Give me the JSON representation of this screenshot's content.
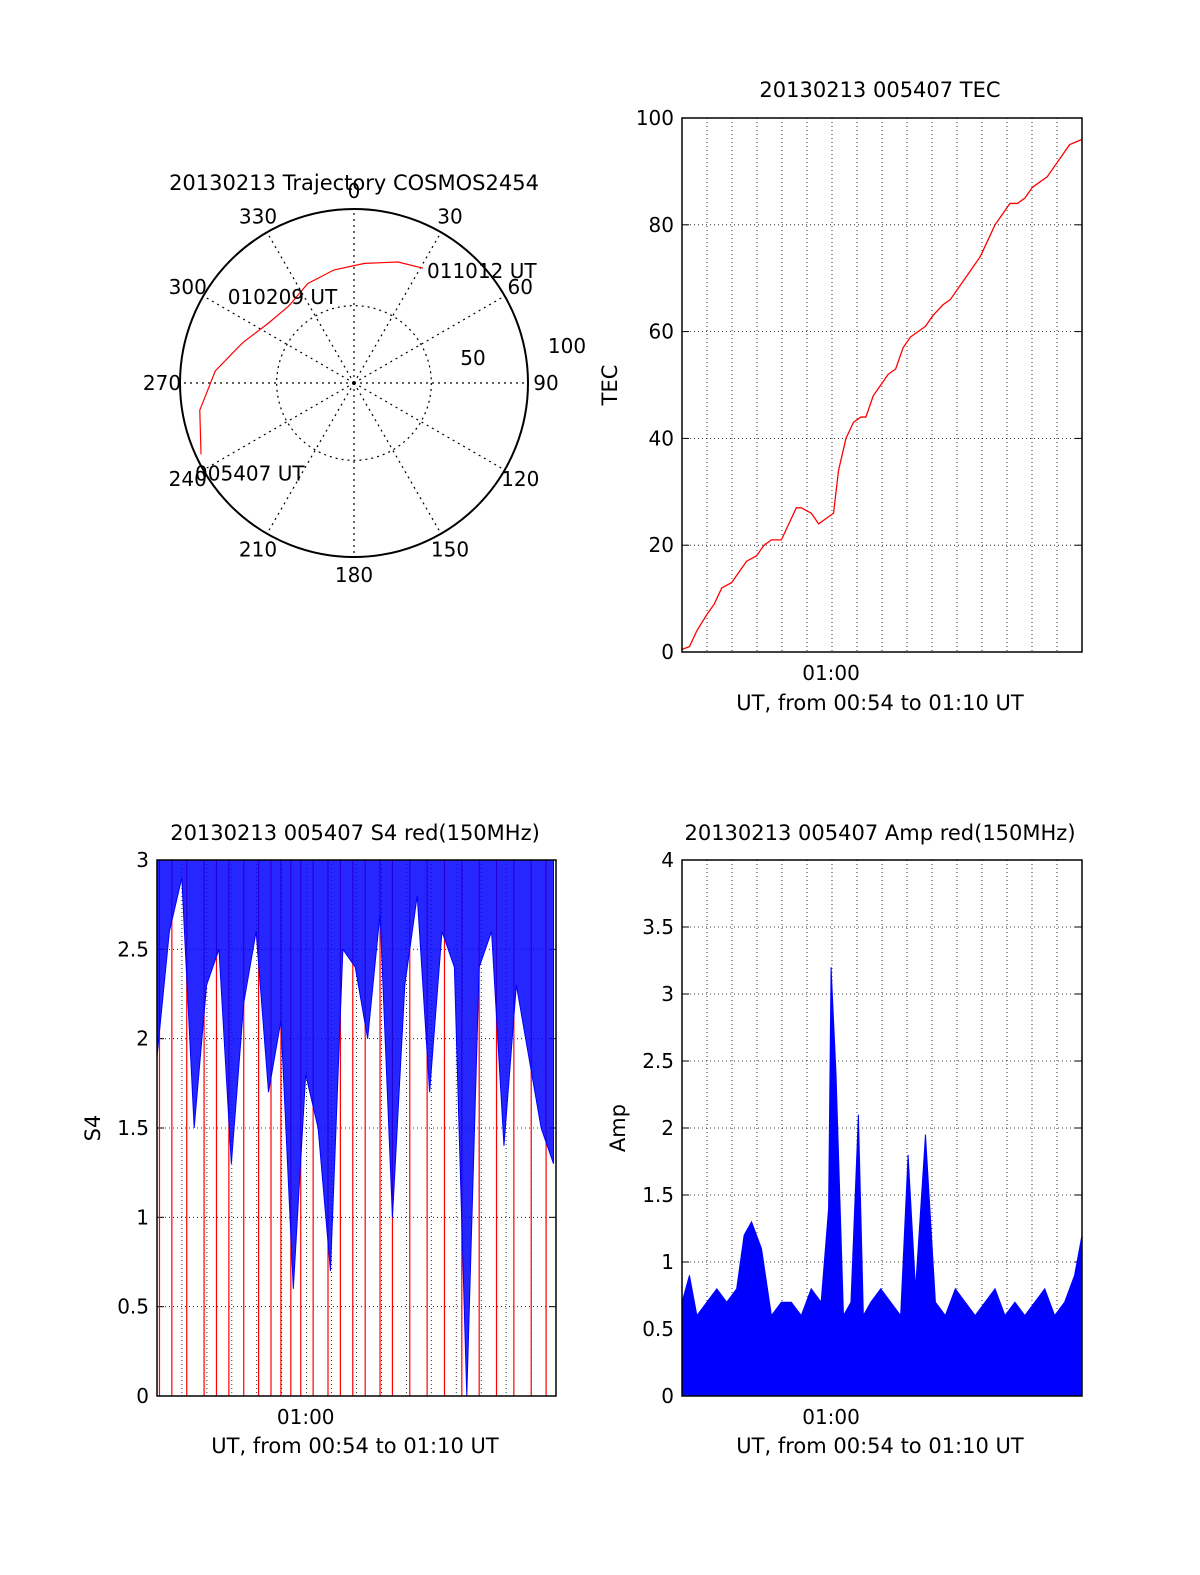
{
  "colors": {
    "red": "#ff0000",
    "blue": "#0000ff",
    "axis": "#000000"
  },
  "chart_data": [
    {
      "id": "polar",
      "type": "polar-trajectory",
      "title": "20130213 Trajectory COSMOS2454",
      "azimuth_labels": [
        "0",
        "30",
        "60",
        "90",
        "120",
        "150",
        "180",
        "210",
        "240",
        "270",
        "300",
        "330"
      ],
      "radial_labels": [
        "50",
        "100"
      ],
      "elevation_rings": [
        50
      ],
      "trajectory": [
        {
          "az": 245,
          "r": 0.97
        },
        {
          "az": 260,
          "r": 0.9
        },
        {
          "az": 275,
          "r": 0.8
        },
        {
          "az": 290,
          "r": 0.68
        },
        {
          "az": 305,
          "r": 0.6
        },
        {
          "az": 320,
          "r": 0.58
        },
        {
          "az": 335,
          "r": 0.63
        },
        {
          "az": 350,
          "r": 0.66
        },
        {
          "az": 5,
          "r": 0.69
        },
        {
          "az": 20,
          "r": 0.74
        },
        {
          "az": 31,
          "r": 0.77
        }
      ],
      "annotations": [
        {
          "text": "011012 UT",
          "az": 31,
          "r": 0.77
        },
        {
          "text": "010209 UT",
          "az": 318,
          "r": 0.58
        },
        {
          "text": "005407 UT",
          "az": 245,
          "r": 0.97
        }
      ]
    },
    {
      "id": "tec",
      "type": "line",
      "title": "20130213 005407 TEC",
      "xlabel": "UT, from 00:54 to 01:10 UT",
      "ylabel": "TEC",
      "xlim": [
        0,
        16.1
      ],
      "ylim": [
        0,
        100
      ],
      "xticks": [
        {
          "x": 6,
          "label": "01:00"
        }
      ],
      "yticks": [
        0,
        20,
        40,
        60,
        80,
        100
      ],
      "grid": true,
      "series": [
        {
          "color": "red",
          "x": [
            0,
            0.3,
            0.6,
            1,
            1.3,
            1.6,
            2,
            2.3,
            2.6,
            3,
            3.3,
            3.6,
            4,
            4.3,
            4.6,
            4.8,
            5.2,
            5.5,
            5.8,
            6.1,
            6.3,
            6.6,
            6.9,
            7.2,
            7.4,
            7.7,
            8,
            8.3,
            8.6,
            8.9,
            9.2,
            9.5,
            9.8,
            10.1,
            10.5,
            10.8,
            11.1,
            11.4,
            11.7,
            12,
            12.3,
            12.6,
            12.9,
            13.2,
            13.5,
            13.8,
            14.1,
            14.4,
            14.7,
            15,
            15.3,
            15.6,
            16.1
          ],
          "y": [
            0.5,
            1,
            4,
            7,
            9,
            12,
            13,
            15,
            17,
            18,
            20,
            21,
            21,
            24,
            27,
            27,
            26,
            24,
            25,
            26,
            34,
            40,
            43,
            44,
            44,
            48,
            50,
            52,
            53,
            57,
            59,
            60,
            61,
            63,
            65,
            66,
            68,
            70,
            72,
            74,
            77,
            80,
            82,
            84,
            84,
            85,
            87,
            88,
            89,
            91,
            93,
            95,
            96
          ]
        }
      ]
    },
    {
      "id": "s4",
      "type": "line",
      "title": "20130213 005407 S4 red(150MHz)",
      "xlabel": "UT, from 00:54 to 01:10 UT",
      "ylabel": "S4",
      "xlim": [
        0,
        16.1
      ],
      "ylim": [
        0,
        3
      ],
      "xticks": [
        {
          "x": 6,
          "label": "01:00"
        }
      ],
      "yticks": [
        "0",
        "0.5",
        "1",
        "1.5",
        "2",
        "2.5",
        "3"
      ],
      "grid": true,
      "series": [
        {
          "color": "red",
          "name": "",
          "x": [
            0.1,
            0.6,
            1.2,
            1.9,
            2.4,
            2.9,
            3.5,
            4.1,
            4.6,
            5.0,
            5.4,
            5.8,
            6.3,
            6.9,
            7.4,
            7.9,
            8.4,
            9.0,
            9.5,
            10.2,
            10.9,
            11.6,
            12.3,
            13.0,
            13.7,
            14.4,
            15.1,
            15.7
          ],
          "y": [
            0,
            0,
            0,
            0,
            0,
            0,
            0,
            0,
            0,
            0,
            0,
            0,
            0,
            0,
            0,
            0,
            0,
            0,
            0,
            0,
            0,
            0,
            0,
            0,
            0,
            0,
            0,
            0
          ]
        },
        {
          "color": "blue",
          "name": "",
          "x": [
            0,
            0.5,
            1,
            1.5,
            2,
            2.5,
            3,
            3.5,
            4,
            4.5,
            5,
            5.5,
            6,
            6.5,
            7,
            7.5,
            8,
            8.5,
            9,
            9.5,
            10,
            10.5,
            11,
            11.5,
            12,
            12.5,
            13,
            13.5,
            14,
            14.5,
            15,
            15.5,
            16
          ],
          "y": [
            1.9,
            2.6,
            2.9,
            1.5,
            2.3,
            2.5,
            1.3,
            2.2,
            2.6,
            1.7,
            2.1,
            0.6,
            1.8,
            1.5,
            0.7,
            2.5,
            2.4,
            2.0,
            2.7,
            1.0,
            2.3,
            2.8,
            1.7,
            2.6,
            2.4,
            0.0,
            2.4,
            2.6,
            1.4,
            2.3,
            1.9,
            1.5,
            1.3
          ]
        }
      ]
    },
    {
      "id": "amp",
      "type": "line",
      "title": "20130213 005407 Amp red(150MHz)",
      "xlabel": "UT, from 00:54 to 01:10 UT",
      "ylabel": "Amp",
      "xlim": [
        0,
        16.1
      ],
      "ylim": [
        0,
        4
      ],
      "xticks": [
        {
          "x": 6,
          "label": "01:00"
        }
      ],
      "yticks": [
        "0",
        "0.5",
        "1",
        "1.5",
        "2",
        "2.5",
        "3",
        "3.5",
        "4"
      ],
      "grid": true,
      "series": [
        {
          "color": "blue",
          "name": "",
          "x": [
            0,
            0.3,
            0.6,
            1,
            1.4,
            1.8,
            2.2,
            2.5,
            2.8,
            3.2,
            3.6,
            4,
            4.4,
            4.8,
            5.2,
            5.6,
            5.9,
            6.0,
            6.2,
            6.5,
            6.8,
            7.1,
            7.3,
            7.6,
            8,
            8.4,
            8.8,
            9.1,
            9.4,
            9.8,
            10.2,
            10.6,
            11,
            11.4,
            11.8,
            12.2,
            12.6,
            13,
            13.4,
            13.8,
            14.2,
            14.6,
            15,
            15.4,
            15.8,
            16.1
          ],
          "y": [
            0.7,
            0.9,
            0.6,
            0.7,
            0.8,
            0.7,
            0.8,
            1.2,
            1.3,
            1.1,
            0.6,
            0.7,
            0.7,
            0.6,
            0.8,
            0.7,
            1.4,
            3.2,
            2.4,
            0.6,
            0.7,
            2.1,
            0.6,
            0.7,
            0.8,
            0.7,
            0.6,
            1.8,
            0.8,
            1.95,
            0.7,
            0.6,
            0.8,
            0.7,
            0.6,
            0.7,
            0.8,
            0.6,
            0.7,
            0.6,
            0.7,
            0.8,
            0.6,
            0.7,
            0.9,
            1.2
          ]
        }
      ]
    }
  ]
}
